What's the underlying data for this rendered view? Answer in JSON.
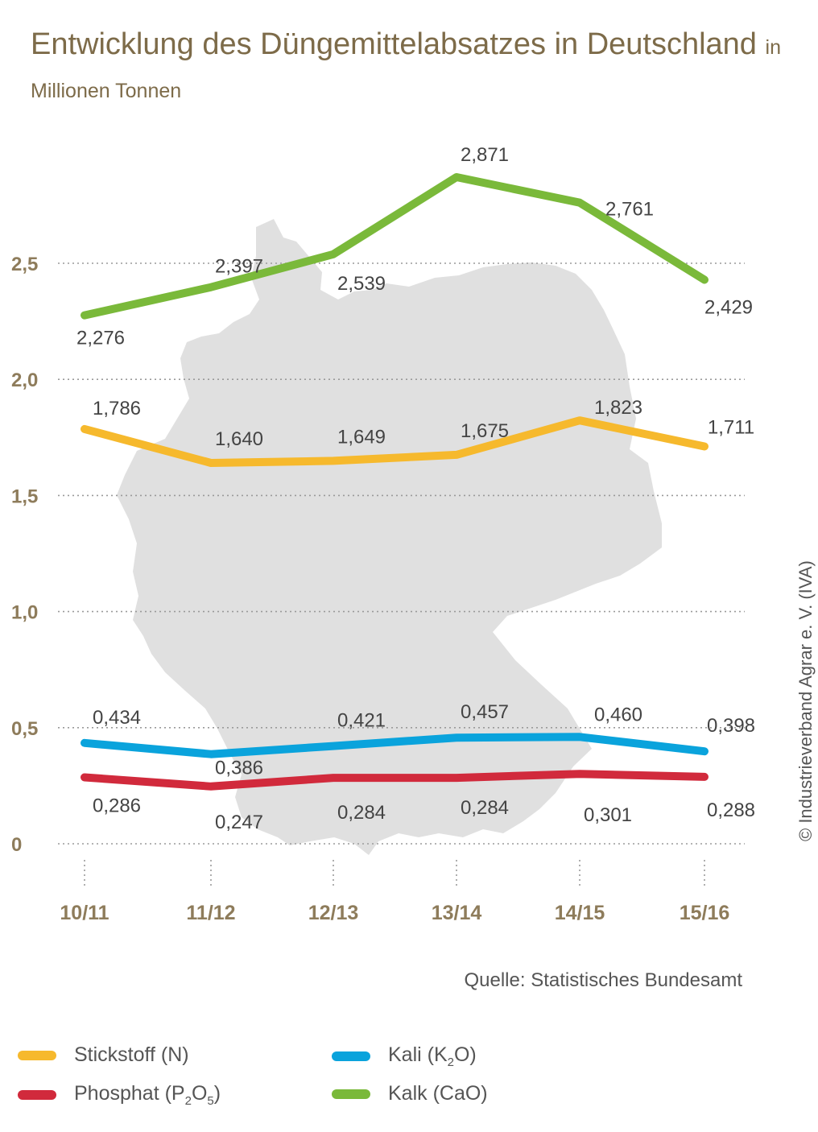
{
  "title": "Entwicklung des Düngemittelabsatzes in Deutschland",
  "unit": "in Millionen Tonnen",
  "source": "Quelle: Statistisches Bundesamt",
  "copyright": "© Industrieverband Agrar e. V. (IVA)",
  "legend": [
    {
      "label": "Stickstoff (N)",
      "color": "#f6b92d"
    },
    {
      "label_parts": [
        "Kali (K",
        "2",
        "O)"
      ],
      "color": "#0aa3dc"
    },
    {
      "label_parts": [
        "Phosphat (P",
        "2",
        "O",
        "5",
        ")"
      ],
      "color": "#d12a3c"
    },
    {
      "label": "Kalk (CaO)",
      "color": "#7ab93a"
    }
  ],
  "chart_data": {
    "type": "line",
    "categories": [
      "10/11",
      "11/12",
      "12/13",
      "13/14",
      "14/15",
      "15/16"
    ],
    "ylim": [
      0,
      2.5
    ],
    "yticks": [
      0,
      0.5,
      1.0,
      1.5,
      2.0,
      2.5
    ],
    "ytick_labels": [
      "0",
      "0,5",
      "1,0",
      "1,5",
      "2,0",
      "2,5"
    ],
    "grid": true,
    "legend_position": "bottom",
    "background": "map of Germany (gray silhouette)",
    "series": [
      {
        "name": "Kalk (CaO)",
        "color": "#7ab93a",
        "values": [
          2.276,
          2.397,
          2.539,
          2.871,
          2.761,
          2.429
        ],
        "labels": [
          "2,276",
          "2,397",
          "2,539",
          "2,871",
          "2,761",
          "2,429"
        ]
      },
      {
        "name": "Stickstoff (N)",
        "color": "#f6b92d",
        "values": [
          1.786,
          1.64,
          1.649,
          1.675,
          1.823,
          1.711
        ],
        "labels": [
          "1,786",
          "1,640",
          "1,649",
          "1,675",
          "1,823",
          "1,711"
        ]
      },
      {
        "name": "Kali (K2O)",
        "color": "#0aa3dc",
        "values": [
          0.434,
          0.386,
          0.421,
          0.457,
          0.46,
          0.398
        ],
        "labels": [
          "0,434",
          "0,386",
          "0,421",
          "0,457",
          "0,460",
          "0,398"
        ]
      },
      {
        "name": "Phosphat (P2O5)",
        "color": "#d12a3c",
        "values": [
          0.286,
          0.247,
          0.284,
          0.284,
          0.301,
          0.288
        ],
        "labels": [
          "0,286",
          "0,247",
          "0,284",
          "0,284",
          "0,301",
          "0,288"
        ]
      }
    ]
  }
}
